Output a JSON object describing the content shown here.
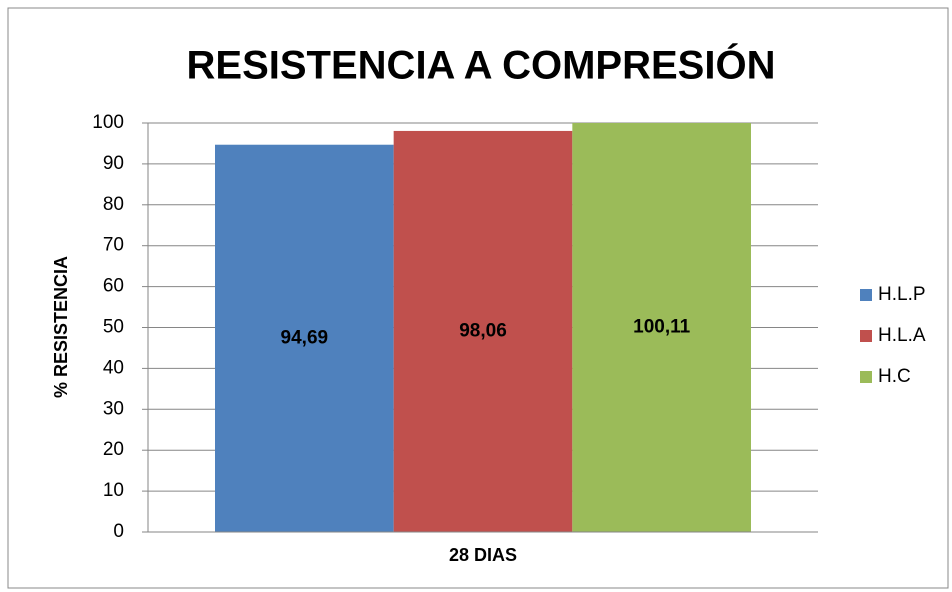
{
  "chart_data": {
    "type": "bar",
    "title": "RESISTENCIA A COMPRESIÓN",
    "y_label": "% RESISTENCIA",
    "categories": [
      "28 DIAS"
    ],
    "series": [
      {
        "name": "H.L.P",
        "color": "#4f81bd",
        "values": [
          94.69
        ],
        "value_labels": [
          "94,69"
        ]
      },
      {
        "name": "H.L.A",
        "color": "#c0504d",
        "values": [
          98.06
        ],
        "value_labels": [
          "98,06"
        ]
      },
      {
        "name": "H.C",
        "color": "#9bbb59",
        "values": [
          100.11
        ],
        "value_labels": [
          "100,11"
        ]
      }
    ],
    "ylim": [
      0,
      100
    ],
    "yticks": [
      0,
      10,
      20,
      30,
      40,
      50,
      60,
      70,
      80,
      90,
      100
    ],
    "grid": true,
    "legend": "right"
  }
}
